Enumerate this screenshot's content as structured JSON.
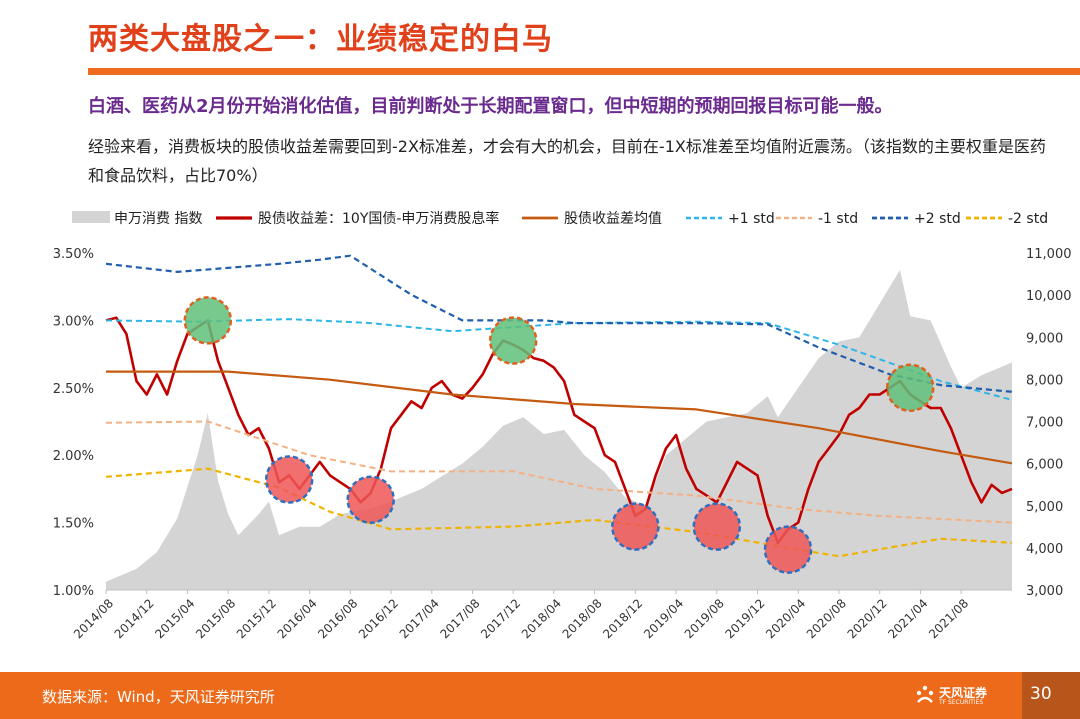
{
  "header": {
    "title": "两类大盘股之一：业绩稳定的白马",
    "subtitle": "白酒、医药从2月份开始消化估值，目前判断处于长期配置窗口，但中短期的预期回报目标可能一般。",
    "paragraph": "经验来看，消费板块的股债收益差需要回到-2X标准差，才会有大的机会，目前在-1X标准差至均值附近震荡。（该指数的主要权重是医药和食品饮料，占比70%）"
  },
  "footer": {
    "source": "数据来源：Wind，天风证券研究所",
    "logo_name": "天风证券",
    "logo_sub": "TF SECURITIES",
    "page_number": "30"
  },
  "colors": {
    "title": "#e0401a",
    "accent_bar": "#ee6a1e",
    "subtitle": "#6a2a8e",
    "area": "#d4d4d4",
    "spread": "#c00000",
    "mean": "#c55a11",
    "plus1": "#2eb6e8",
    "minus1": "#f4b183",
    "plus2": "#1f5fad",
    "minus2": "#f0b400",
    "circle_green": "#5fbf7a",
    "circle_red": "#ee5656",
    "circle_border_green": "#e06020",
    "circle_border_red": "#2f6fc0"
  },
  "chart_data": {
    "type": "line",
    "x_range": [
      "2014-08",
      "2022-01"
    ],
    "x_ticks": [
      "2014/08",
      "2014/12",
      "2015/04",
      "2015/08",
      "2015/12",
      "2016/04",
      "2016/08",
      "2016/12",
      "2017/04",
      "2017/08",
      "2017/12",
      "2018/04",
      "2018/08",
      "2018/12",
      "2019/04",
      "2019/08",
      "2019/12",
      "2020/04",
      "2020/08",
      "2020/12",
      "2021/04",
      "2021/08"
    ],
    "y_left": {
      "min": 1.0,
      "max": 3.5,
      "ticks": [
        "1.00%",
        "1.50%",
        "2.00%",
        "2.50%",
        "3.00%",
        "3.50%"
      ]
    },
    "y_right": {
      "min": 3000,
      "max": 11000,
      "ticks": [
        "3,000",
        "4,000",
        "5,000",
        "6,000",
        "7,000",
        "8,000",
        "9,000",
        "10,000",
        "11,000"
      ]
    },
    "legend": [
      "申万消费 指数",
      "股债收益差：10Y国债-申万消费股息率",
      "股债收益差均值",
      "+1 std",
      "-1 std",
      "+2 std",
      "-2 std"
    ],
    "series": [
      {
        "name": "申万消费 指数",
        "axis": "right",
        "kind": "area",
        "points": [
          [
            "2014-08",
            3200
          ],
          [
            "2014-11",
            3500
          ],
          [
            "2015-01",
            3900
          ],
          [
            "2015-03",
            4700
          ],
          [
            "2015-05",
            6200
          ],
          [
            "2015-06",
            7200
          ],
          [
            "2015-07",
            5600
          ],
          [
            "2015-08",
            4800
          ],
          [
            "2015-09",
            4300
          ],
          [
            "2015-11",
            4800
          ],
          [
            "2015-12",
            5100
          ],
          [
            "2016-01",
            4300
          ],
          [
            "2016-03",
            4500
          ],
          [
            "2016-05",
            4500
          ],
          [
            "2016-07",
            4800
          ],
          [
            "2016-09",
            4900
          ],
          [
            "2016-11",
            5000
          ],
          [
            "2017-01",
            5200
          ],
          [
            "2017-03",
            5400
          ],
          [
            "2017-05",
            5700
          ],
          [
            "2017-07",
            6000
          ],
          [
            "2017-09",
            6400
          ],
          [
            "2017-11",
            6900
          ],
          [
            "2018-01",
            7100
          ],
          [
            "2018-03",
            6700
          ],
          [
            "2018-05",
            6800
          ],
          [
            "2018-07",
            6200
          ],
          [
            "2018-09",
            5800
          ],
          [
            "2018-11",
            5200
          ],
          [
            "2019-01",
            5000
          ],
          [
            "2019-03",
            6200
          ],
          [
            "2019-05",
            6600
          ],
          [
            "2019-07",
            7000
          ],
          [
            "2019-09",
            7100
          ],
          [
            "2019-11",
            7200
          ],
          [
            "2020-01",
            7600
          ],
          [
            "2020-02",
            7100
          ],
          [
            "2020-04",
            7800
          ],
          [
            "2020-06",
            8500
          ],
          [
            "2020-08",
            8900
          ],
          [
            "2020-10",
            9000
          ],
          [
            "2020-12",
            9800
          ],
          [
            "2021-02",
            10600
          ],
          [
            "2021-03",
            9500
          ],
          [
            "2021-05",
            9400
          ],
          [
            "2021-07",
            8300
          ],
          [
            "2021-08",
            7800
          ],
          [
            "2021-10",
            8100
          ],
          [
            "2021-12",
            8300
          ],
          [
            "2022-01",
            8400
          ]
        ]
      },
      {
        "name": "股债收益差：10Y国债-申万消费股息率",
        "axis": "left",
        "points": [
          [
            "2014-08",
            3.0
          ],
          [
            "2014-09",
            3.02
          ],
          [
            "2014-10",
            2.9
          ],
          [
            "2014-11",
            2.55
          ],
          [
            "2014-12",
            2.45
          ],
          [
            "2015-01",
            2.6
          ],
          [
            "2015-02",
            2.45
          ],
          [
            "2015-03",
            2.7
          ],
          [
            "2015-04",
            2.9
          ],
          [
            "2015-05",
            2.95
          ],
          [
            "2015-06",
            3.0
          ],
          [
            "2015-07",
            2.7
          ],
          [
            "2015-08",
            2.5
          ],
          [
            "2015-09",
            2.3
          ],
          [
            "2015-10",
            2.15
          ],
          [
            "2015-11",
            2.2
          ],
          [
            "2015-12",
            2.05
          ],
          [
            "2016-01",
            1.8
          ],
          [
            "2016-02",
            1.85
          ],
          [
            "2016-03",
            1.75
          ],
          [
            "2016-04",
            1.85
          ],
          [
            "2016-05",
            1.95
          ],
          [
            "2016-06",
            1.85
          ],
          [
            "2016-07",
            1.8
          ],
          [
            "2016-08",
            1.75
          ],
          [
            "2016-09",
            1.65
          ],
          [
            "2016-10",
            1.72
          ],
          [
            "2016-11",
            1.9
          ],
          [
            "2016-12",
            2.2
          ],
          [
            "2017-01",
            2.3
          ],
          [
            "2017-02",
            2.4
          ],
          [
            "2017-03",
            2.35
          ],
          [
            "2017-04",
            2.5
          ],
          [
            "2017-05",
            2.55
          ],
          [
            "2017-06",
            2.45
          ],
          [
            "2017-07",
            2.42
          ],
          [
            "2017-08",
            2.5
          ],
          [
            "2017-09",
            2.6
          ],
          [
            "2017-10",
            2.75
          ],
          [
            "2017-11",
            2.85
          ],
          [
            "2017-12",
            2.82
          ],
          [
            "2018-01",
            2.78
          ],
          [
            "2018-02",
            2.72
          ],
          [
            "2018-03",
            2.7
          ],
          [
            "2018-04",
            2.65
          ],
          [
            "2018-05",
            2.55
          ],
          [
            "2018-06",
            2.3
          ],
          [
            "2018-07",
            2.25
          ],
          [
            "2018-08",
            2.2
          ],
          [
            "2018-09",
            2.0
          ],
          [
            "2018-10",
            1.95
          ],
          [
            "2018-11",
            1.75
          ],
          [
            "2018-12",
            1.55
          ],
          [
            "2019-01",
            1.6
          ],
          [
            "2019-02",
            1.85
          ],
          [
            "2019-03",
            2.05
          ],
          [
            "2019-04",
            2.15
          ],
          [
            "2019-05",
            1.9
          ],
          [
            "2019-06",
            1.75
          ],
          [
            "2019-07",
            1.7
          ],
          [
            "2019-08",
            1.65
          ],
          [
            "2019-09",
            1.8
          ],
          [
            "2019-10",
            1.95
          ],
          [
            "2019-11",
            1.9
          ],
          [
            "2019-12",
            1.85
          ],
          [
            "2020-01",
            1.55
          ],
          [
            "2020-02",
            1.35
          ],
          [
            "2020-03",
            1.45
          ],
          [
            "2020-04",
            1.5
          ],
          [
            "2020-05",
            1.75
          ],
          [
            "2020-06",
            1.95
          ],
          [
            "2020-07",
            2.05
          ],
          [
            "2020-08",
            2.15
          ],
          [
            "2020-09",
            2.3
          ],
          [
            "2020-10",
            2.35
          ],
          [
            "2020-11",
            2.45
          ],
          [
            "2020-12",
            2.45
          ],
          [
            "2021-01",
            2.5
          ],
          [
            "2021-02",
            2.55
          ],
          [
            "2021-03",
            2.45
          ],
          [
            "2021-04",
            2.4
          ],
          [
            "2021-05",
            2.35
          ],
          [
            "2021-06",
            2.35
          ],
          [
            "2021-07",
            2.2
          ],
          [
            "2021-08",
            2.0
          ],
          [
            "2021-09",
            1.8
          ],
          [
            "2021-10",
            1.65
          ],
          [
            "2021-11",
            1.78
          ],
          [
            "2021-12",
            1.72
          ],
          [
            "2022-01",
            1.75
          ]
        ]
      },
      {
        "name": "股债收益差均值",
        "axis": "left",
        "points": [
          [
            "2014-08",
            2.62
          ],
          [
            "2015-08",
            2.62
          ],
          [
            "2016-06",
            2.56
          ],
          [
            "2017-06",
            2.45
          ],
          [
            "2018-06",
            2.38
          ],
          [
            "2019-06",
            2.34
          ],
          [
            "2020-06",
            2.2
          ],
          [
            "2021-06",
            2.03
          ],
          [
            "2022-01",
            1.94
          ]
        ]
      },
      {
        "name": "+1 std",
        "axis": "left",
        "points": [
          [
            "2014-08",
            3.0
          ],
          [
            "2015-05",
            2.99
          ],
          [
            "2016-02",
            3.01
          ],
          [
            "2016-10",
            2.98
          ],
          [
            "2017-06",
            2.92
          ],
          [
            "2018-06",
            2.98
          ],
          [
            "2019-06",
            2.99
          ],
          [
            "2020-01",
            2.98
          ],
          [
            "2020-08",
            2.82
          ],
          [
            "2021-06",
            2.55
          ],
          [
            "2022-01",
            2.41
          ]
        ]
      },
      {
        "name": "-1 std",
        "axis": "left",
        "points": [
          [
            "2014-08",
            2.24
          ],
          [
            "2015-06",
            2.25
          ],
          [
            "2016-04",
            2.0
          ],
          [
            "2016-12",
            1.88
          ],
          [
            "2017-12",
            1.88
          ],
          [
            "2018-08",
            1.75
          ],
          [
            "2019-06",
            1.7
          ],
          [
            "2020-04",
            1.6
          ],
          [
            "2020-12",
            1.55
          ],
          [
            "2022-01",
            1.5
          ]
        ]
      },
      {
        "name": "+2 std",
        "axis": "left",
        "points": [
          [
            "2014-08",
            3.42
          ],
          [
            "2015-03",
            3.36
          ],
          [
            "2016-01",
            3.42
          ],
          [
            "2016-05",
            3.45
          ],
          [
            "2016-08",
            3.48
          ],
          [
            "2017-02",
            3.19
          ],
          [
            "2017-07",
            3.0
          ],
          [
            "2018-03",
            3.0
          ],
          [
            "2018-06",
            2.98
          ],
          [
            "2019-06",
            2.98
          ],
          [
            "2020-01",
            2.97
          ],
          [
            "2020-06",
            2.8
          ],
          [
            "2021-01",
            2.6
          ],
          [
            "2021-06",
            2.52
          ],
          [
            "2022-01",
            2.47
          ]
        ]
      },
      {
        "name": "-2 std",
        "axis": "left",
        "points": [
          [
            "2014-08",
            1.84
          ],
          [
            "2015-06",
            1.9
          ],
          [
            "2016-01",
            1.76
          ],
          [
            "2016-06",
            1.58
          ],
          [
            "2016-12",
            1.45
          ],
          [
            "2017-12",
            1.47
          ],
          [
            "2018-08",
            1.52
          ],
          [
            "2019-06",
            1.43
          ],
          [
            "2020-04",
            1.3
          ],
          [
            "2020-08",
            1.25
          ],
          [
            "2021-06",
            1.38
          ],
          [
            "2022-01",
            1.35
          ]
        ]
      }
    ],
    "highlights": [
      {
        "x": "2015-06",
        "y": 3.0,
        "color": "green"
      },
      {
        "x": "2016-02",
        "y": 1.82,
        "color": "red"
      },
      {
        "x": "2016-10",
        "y": 1.67,
        "color": "red"
      },
      {
        "x": "2017-12",
        "y": 2.85,
        "color": "green"
      },
      {
        "x": "2018-12",
        "y": 1.47,
        "color": "red"
      },
      {
        "x": "2019-08",
        "y": 1.47,
        "color": "red"
      },
      {
        "x": "2020-03",
        "y": 1.3,
        "color": "red"
      },
      {
        "x": "2021-03",
        "y": 2.5,
        "color": "green"
      }
    ]
  }
}
